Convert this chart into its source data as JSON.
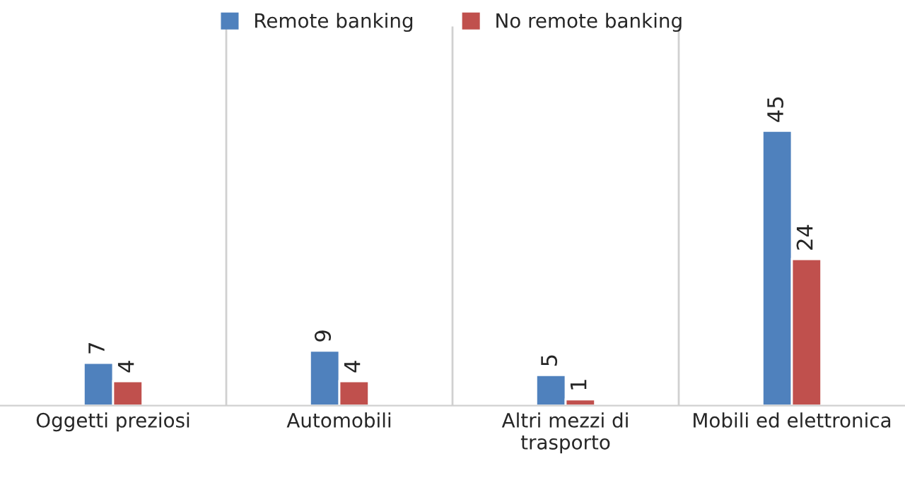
{
  "chart_data": {
    "type": "bar",
    "categories": [
      "Oggetti preziosi",
      "Automobili",
      "Altri mezzi di\ntrasporto",
      "Mobili ed elettronica"
    ],
    "series": [
      {
        "name": "Remote banking",
        "color": "#4f81bd",
        "values": [
          7,
          9,
          5,
          45
        ]
      },
      {
        "name": "No remote banking",
        "color": "#c0504d",
        "values": [
          4,
          4,
          1,
          24
        ]
      }
    ],
    "data_labels": true,
    "grid": "x",
    "legend": "top",
    "tick_labels": "x"
  }
}
